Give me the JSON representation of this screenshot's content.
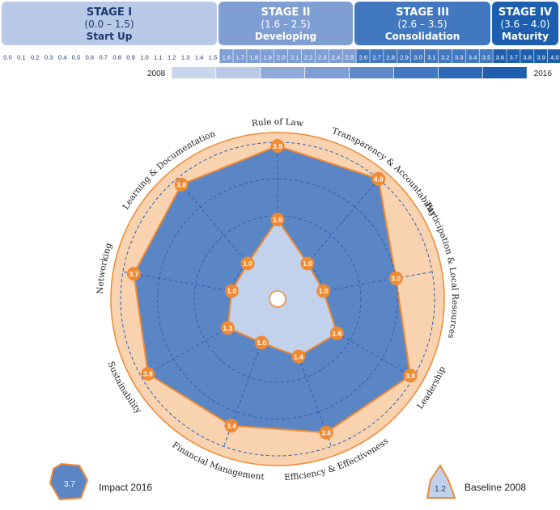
{
  "stages": [
    {
      "title": "STAGE I",
      "range": "(0.0 – 1.5)",
      "name": "Start Up",
      "bg": "#b9c9e8",
      "fg": "#1d3a6e"
    },
    {
      "title": "STAGE II",
      "range": "(1.6 – 2.5)",
      "name": "Developing",
      "bg": "#7f9fd4",
      "fg": "#ffffff"
    },
    {
      "title": "STAGE III",
      "range": "(2.6 – 3.5)",
      "name": "Consolidation",
      "bg": "#4278bf",
      "fg": "#ffffff"
    },
    {
      "title": "STAGE IV",
      "range": "(3.6 – 4.0)",
      "name": "Maturity",
      "bg": "#1d5fae",
      "fg": "#ffffff"
    }
  ],
  "scale_ticks": [
    "0.0",
    "0.1",
    "0.2",
    "0.3",
    "0.4",
    "0.5",
    "0.6",
    "0.7",
    "0.8",
    "0.9",
    "1.0",
    "1.1",
    "1.2",
    "1.3",
    "1.4",
    "1.5",
    "1.6",
    "1.7",
    "1.8",
    "1.9",
    "2.0",
    "2.1",
    "2.2",
    "2.3",
    "2.4",
    "2.5",
    "2.6",
    "2.7",
    "2.8",
    "2.9",
    "3.0",
    "3.1",
    "3.2",
    "3.3",
    "3.4",
    "3.5",
    "3.6",
    "3.7",
    "3.8",
    "3.9",
    "4.0"
  ],
  "year_bar": {
    "start_label": "2008",
    "end_label": "2016",
    "start_value": 1.2,
    "end_value": 3.7
  },
  "colors": {
    "impact_fill": "#5b86c6",
    "baseline_fill": "#c3d2ec",
    "ring": "#f9d2b0",
    "marker": "#ef8a33",
    "outline": "#ef8a33",
    "grid": "#2a5fb3"
  },
  "chart_data": {
    "type": "radar",
    "scale_range": [
      0,
      4
    ],
    "axes": [
      "Rule of Law",
      "Transparency & Accountability",
      "Participation & Local Resources",
      "Leadership",
      "Efficiency & Effectiveness",
      "Financial Management",
      "Sustainability",
      "Networking",
      "Learning & Documentation"
    ],
    "series": [
      {
        "name": "Impact 2016",
        "values": [
          3.9,
          4.0,
          3.0,
          3.9,
          3.6,
          3.4,
          3.8,
          3.7,
          3.8
        ]
      },
      {
        "name": "Baseline 2008",
        "values": [
          1.9,
          1.0,
          1.0,
          1.6,
          1.4,
          1.0,
          1.3,
          1.0,
          1.0
        ]
      }
    ]
  },
  "legend": {
    "impact": {
      "label": "Impact 2016",
      "marker_text": "3.7"
    },
    "baseline": {
      "label": "Baseline 2008",
      "marker_text": "1.2"
    }
  }
}
